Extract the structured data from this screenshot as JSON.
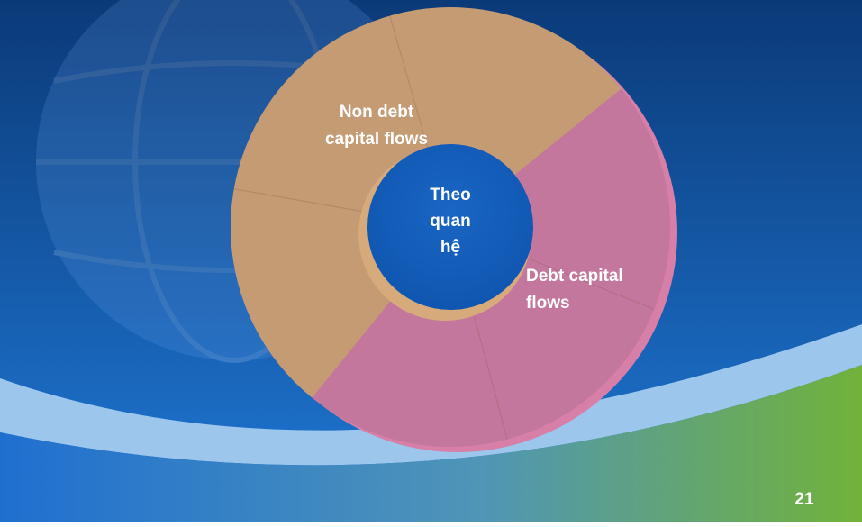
{
  "center_label": [
    "Theo",
    "quan",
    "hệ"
  ],
  "segments": [
    {
      "label": [
        "Non debt",
        "capital flows"
      ]
    },
    {
      "label": [
        "Debt capital",
        "flows"
      ]
    }
  ],
  "page_number": "21"
}
